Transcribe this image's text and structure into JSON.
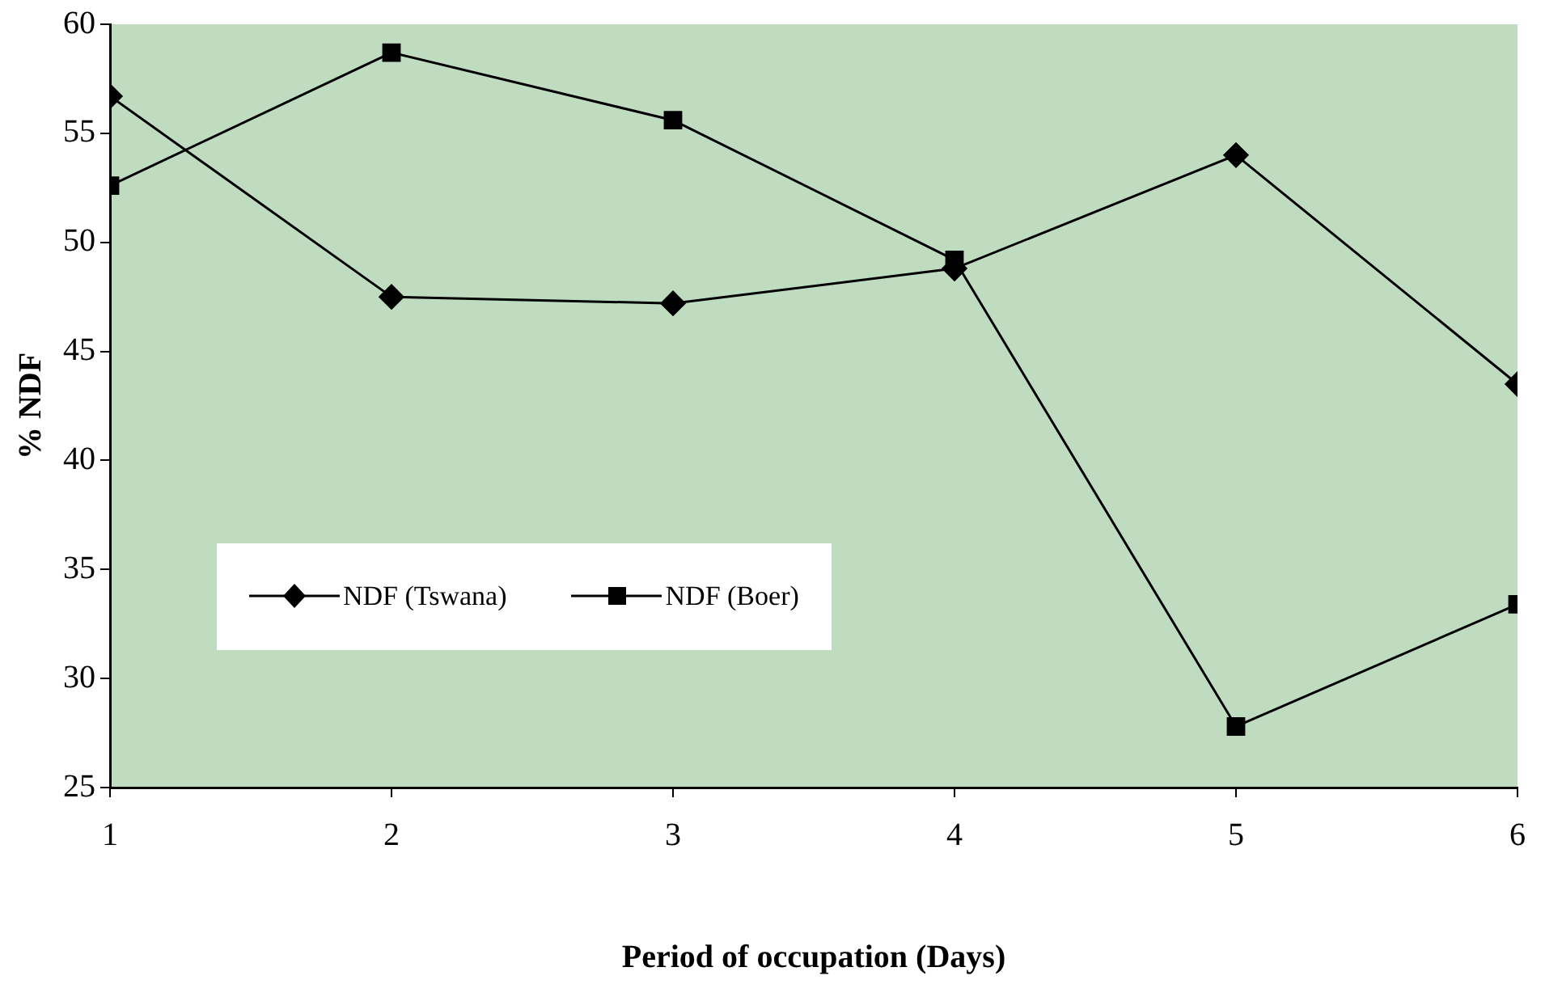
{
  "chart_data": {
    "type": "line",
    "xlabel": "Period of occupation (Days)",
    "ylabel": "% NDF",
    "x": [
      1,
      2,
      3,
      4,
      5,
      6
    ],
    "xlim": [
      1,
      6
    ],
    "xticks": [
      1,
      2,
      3,
      4,
      5,
      6
    ],
    "ylim": [
      25,
      60
    ],
    "yticks": [
      25,
      30,
      35,
      40,
      45,
      50,
      55,
      60
    ],
    "series": [
      {
        "name": "NDF (Tswana)",
        "color": "#000000",
        "marker": "diamond",
        "values": [
          56.7,
          47.5,
          47.2,
          48.8,
          54.0,
          43.5
        ]
      },
      {
        "name": "NDF (Boer)",
        "color": "#000000",
        "marker": "square",
        "values": [
          52.6,
          58.7,
          55.6,
          49.2,
          27.8,
          33.4
        ]
      }
    ],
    "grid": false,
    "legend": "bottom left",
    "line_style": "solid"
  }
}
